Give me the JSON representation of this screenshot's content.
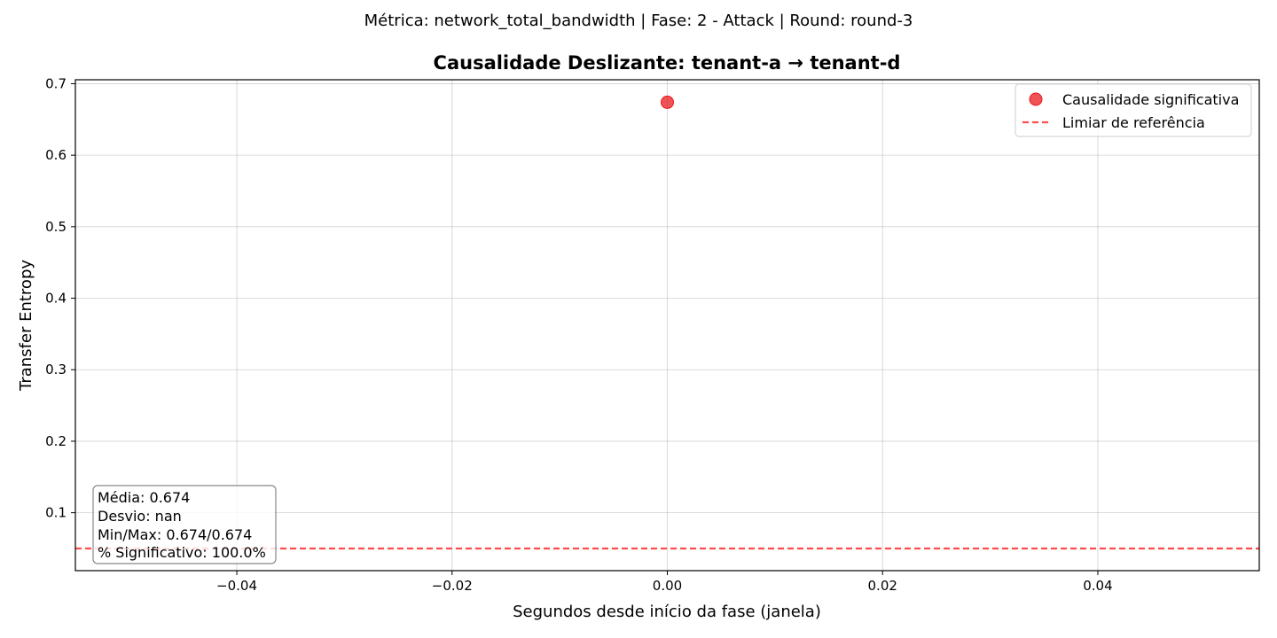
{
  "figure": {
    "suptitle": "Métrica: network_total_bandwidth | Fase: 2 - Attack | Round: round-3"
  },
  "chart_data": {
    "type": "scatter",
    "title": "Causalidade Deslizante: tenant-a → tenant-d",
    "xlabel": "Segundos desde início da fase (janela)",
    "ylabel": "Transfer Entropy",
    "xlim": [
      -0.055,
      0.055
    ],
    "ylim": [
      0.019,
      0.7055
    ],
    "x_ticks": [
      -0.04,
      -0.02,
      0.0,
      0.02,
      0.04
    ],
    "x_tick_labels": [
      "−0.04",
      "−0.02",
      "0.00",
      "0.02",
      "0.04"
    ],
    "y_ticks": [
      0.1,
      0.2,
      0.3,
      0.4,
      0.5,
      0.6,
      0.7
    ],
    "y_tick_labels": [
      "0.1",
      "0.2",
      "0.3",
      "0.4",
      "0.5",
      "0.6",
      "0.7"
    ],
    "grid": true,
    "series": [
      {
        "name": "Causalidade significativa",
        "kind": "scatter",
        "color": "#e8191d",
        "points": [
          {
            "x": 0.0,
            "y": 0.674
          }
        ]
      }
    ],
    "reference_line": {
      "name": "Limiar de referência",
      "kind": "hline",
      "y": 0.05,
      "color": "#ff4d4d",
      "style": "dashed"
    },
    "legend": {
      "position": "top-right",
      "entries": [
        "Causalidade significativa",
        "Limiar de referência"
      ]
    },
    "stats_box": {
      "position": "bottom-left",
      "lines": [
        "Média: 0.674",
        "Desvio: nan",
        "Min/Max: 0.674/0.674",
        "% Significativo: 100.0%"
      ]
    }
  }
}
